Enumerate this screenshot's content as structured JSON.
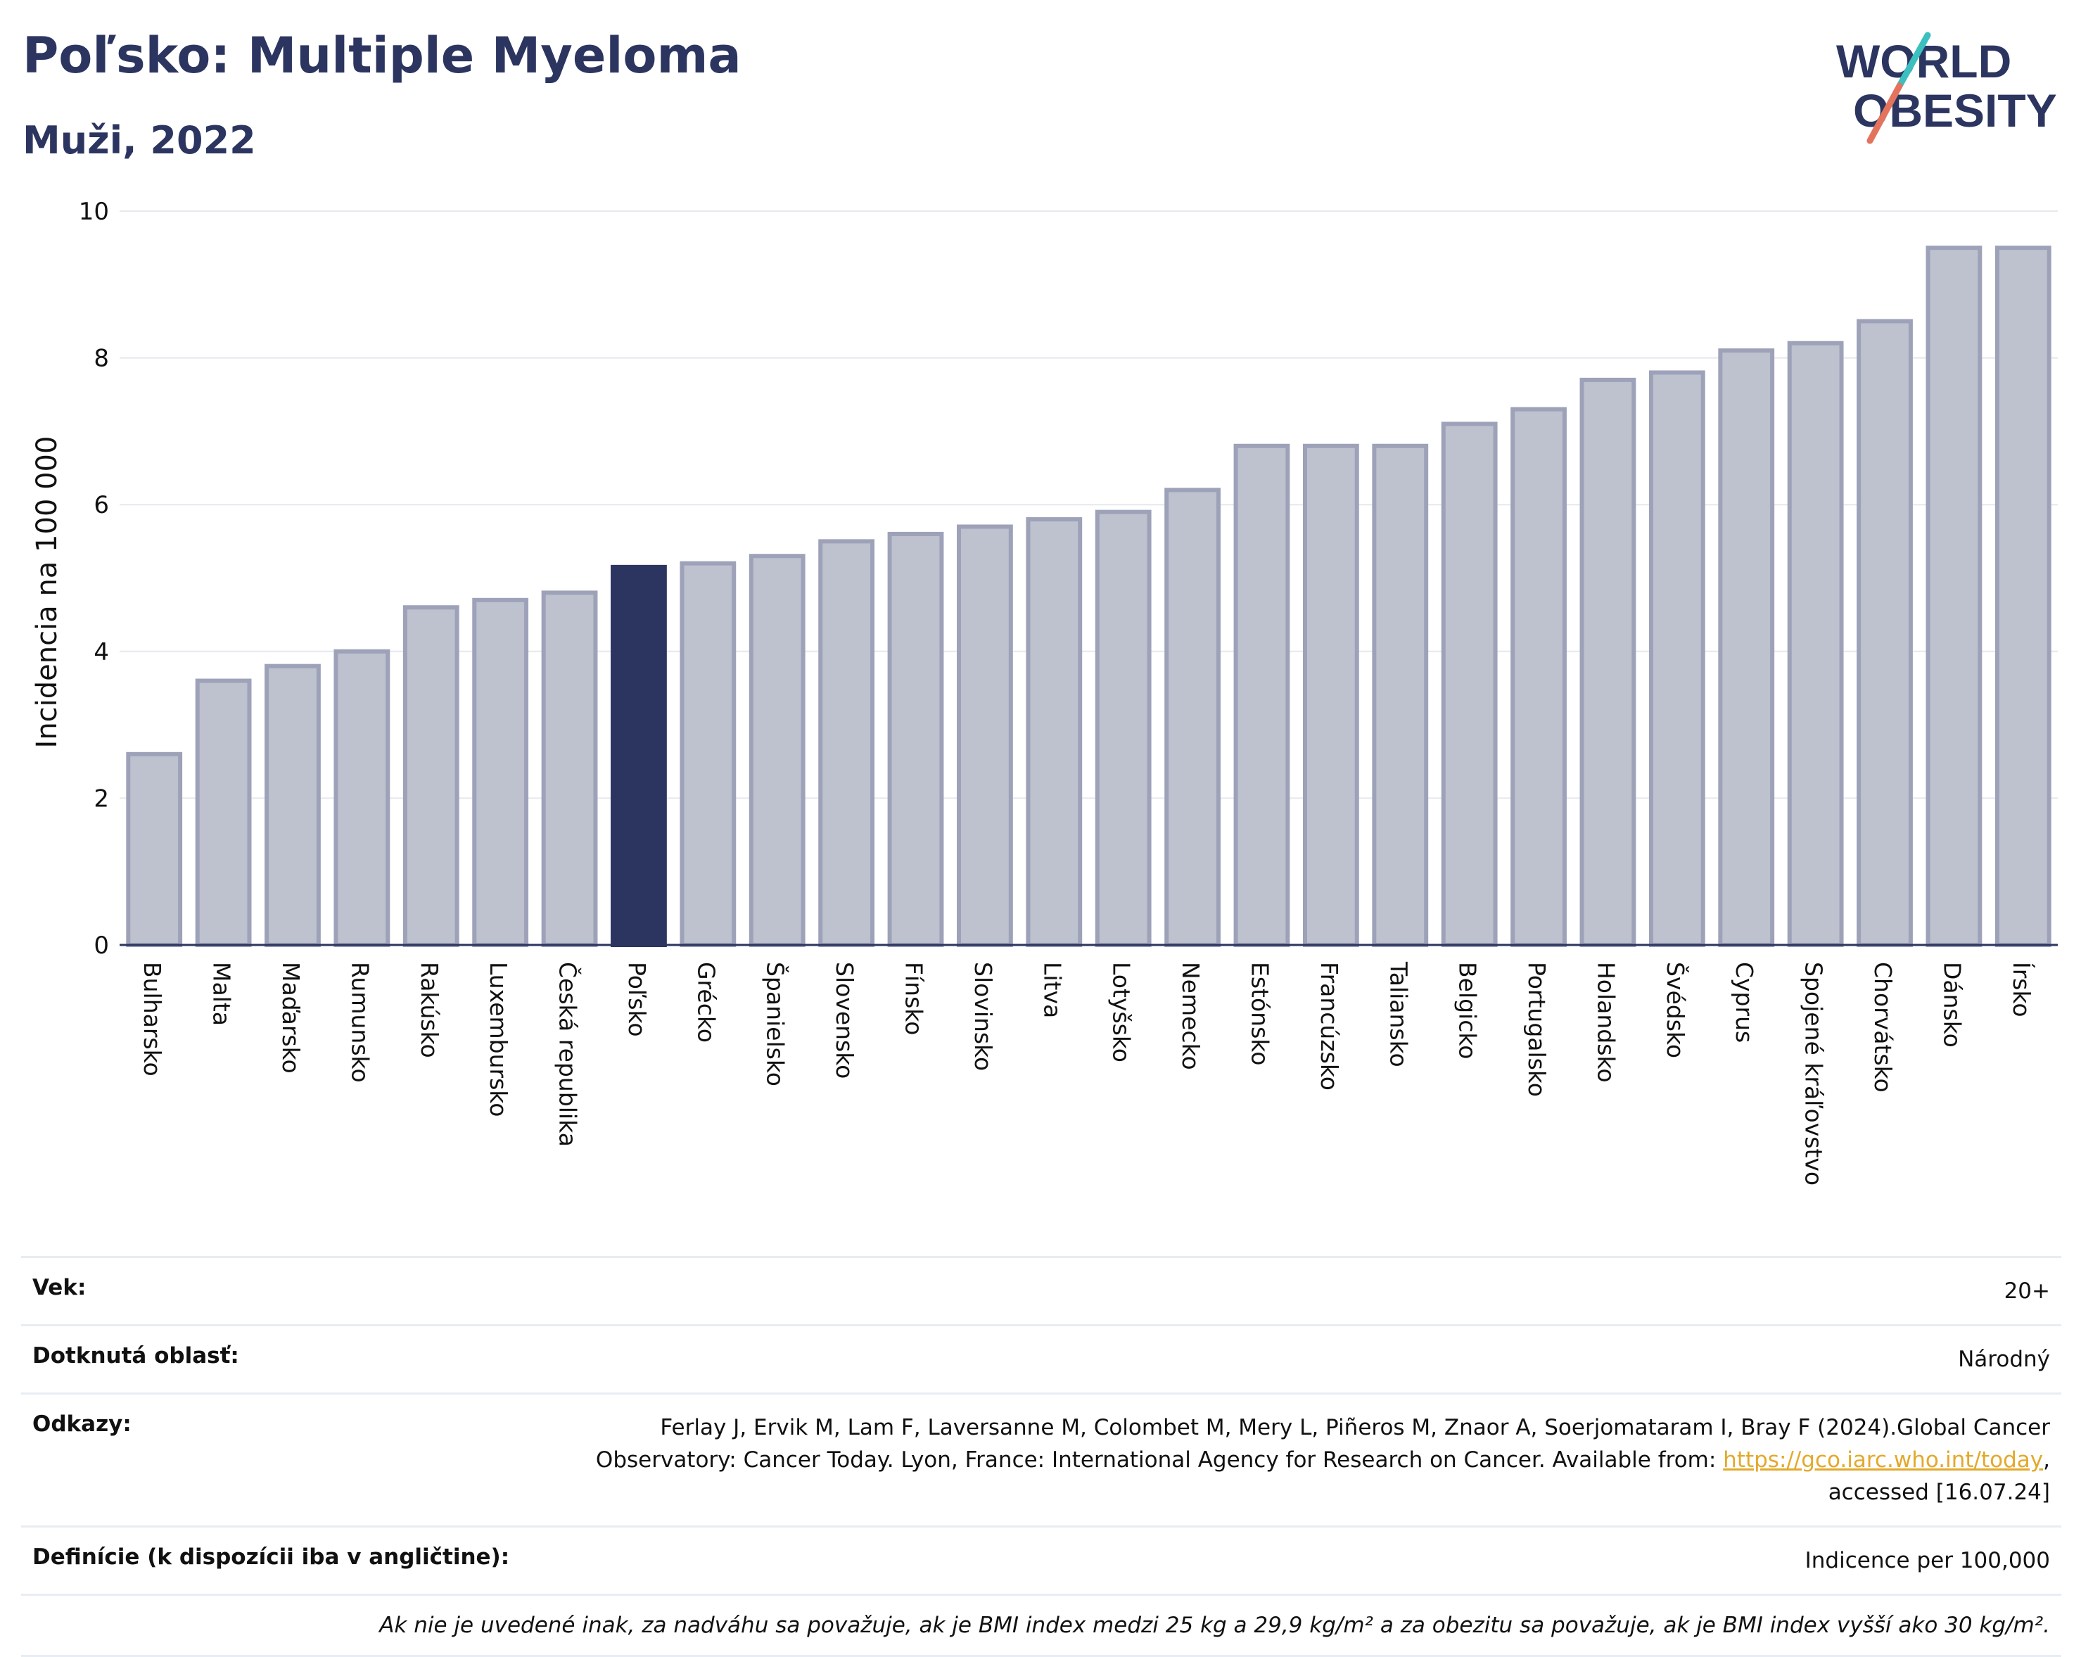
{
  "header": {
    "title": "Poľsko: Multiple Myeloma",
    "subtitle": "Muži, 2022"
  },
  "logo": {
    "line1": "WORLD",
    "line2": "OBESITY",
    "name": "world-obesity-logo"
  },
  "colors": {
    "bar": "#bec1ce",
    "bar_border": "#9da2b9",
    "highlight": "#2b3560",
    "grid": "#e6e8ee",
    "logo_teal": "#3bbfbf",
    "logo_red": "#e4735e",
    "link": "#e3a92b"
  },
  "chart_data": {
    "type": "bar",
    "title": "Poľsko: Multiple Myeloma",
    "subtitle": "Muži, 2022",
    "xlabel": "",
    "ylabel": "Incidencia na 100 000",
    "ylim": [
      0,
      10
    ],
    "yticks": [
      0,
      2,
      4,
      6,
      8,
      10
    ],
    "grid": true,
    "highlight": "Poľsko",
    "categories": [
      "Bulharsko",
      "Malta",
      "Maďarsko",
      "Rumunsko",
      "Rakúsko",
      "Luxembursko",
      "Česká republika",
      "Poľsko",
      "Grécko",
      "Španielsko",
      "Slovensko",
      "Fínsko",
      "Slovinsko",
      "Litva",
      "Lotyšsko",
      "Nemecko",
      "Estónsko",
      "Francúzsko",
      "Taliansko",
      "Belgicko",
      "Portugalsko",
      "Holandsko",
      "Švédsko",
      "Cyprus",
      "Spojené kráľovstvo",
      "Chorvátsko",
      "Dánsko",
      "Írsko"
    ],
    "values": [
      2.6,
      3.6,
      3.8,
      4.0,
      4.6,
      4.7,
      4.8,
      5.15,
      5.2,
      5.3,
      5.5,
      5.6,
      5.7,
      5.8,
      5.9,
      6.2,
      6.8,
      6.8,
      6.8,
      7.1,
      7.3,
      7.7,
      7.8,
      8.1,
      8.2,
      8.5,
      9.5,
      9.5
    ]
  },
  "info": {
    "age_label": "Vek:",
    "age_value": "20+",
    "area_label": "Dotknutá oblasť:",
    "area_value": "Národný",
    "refs_label": "Odkazy:",
    "refs_text": "Ferlay J, Ervik M, Lam F, Laversanne M, Colombet M, Mery L, Piñeros M, Znaor A, Soerjomataram I, Bray F (2024).Global Cancer Observatory: Cancer Today. Lyon, France: International Agency for Research on Cancer. Available from: ",
    "refs_link": "https://gco.iarc.who.int/today",
    "refs_tail": ", accessed [16.07.24]",
    "def_label": "Definície (k dispozícii iba v angličtine):",
    "def_value": "Indicence per 100,000",
    "note": "Ak nie je uvedené inak, za nadváhu sa považuje, ak je BMI index medzi 25 kg a 29,9 kg/m² a za obezitu sa považuje, ak je BMI index vyšší ako 30 kg/m²."
  }
}
